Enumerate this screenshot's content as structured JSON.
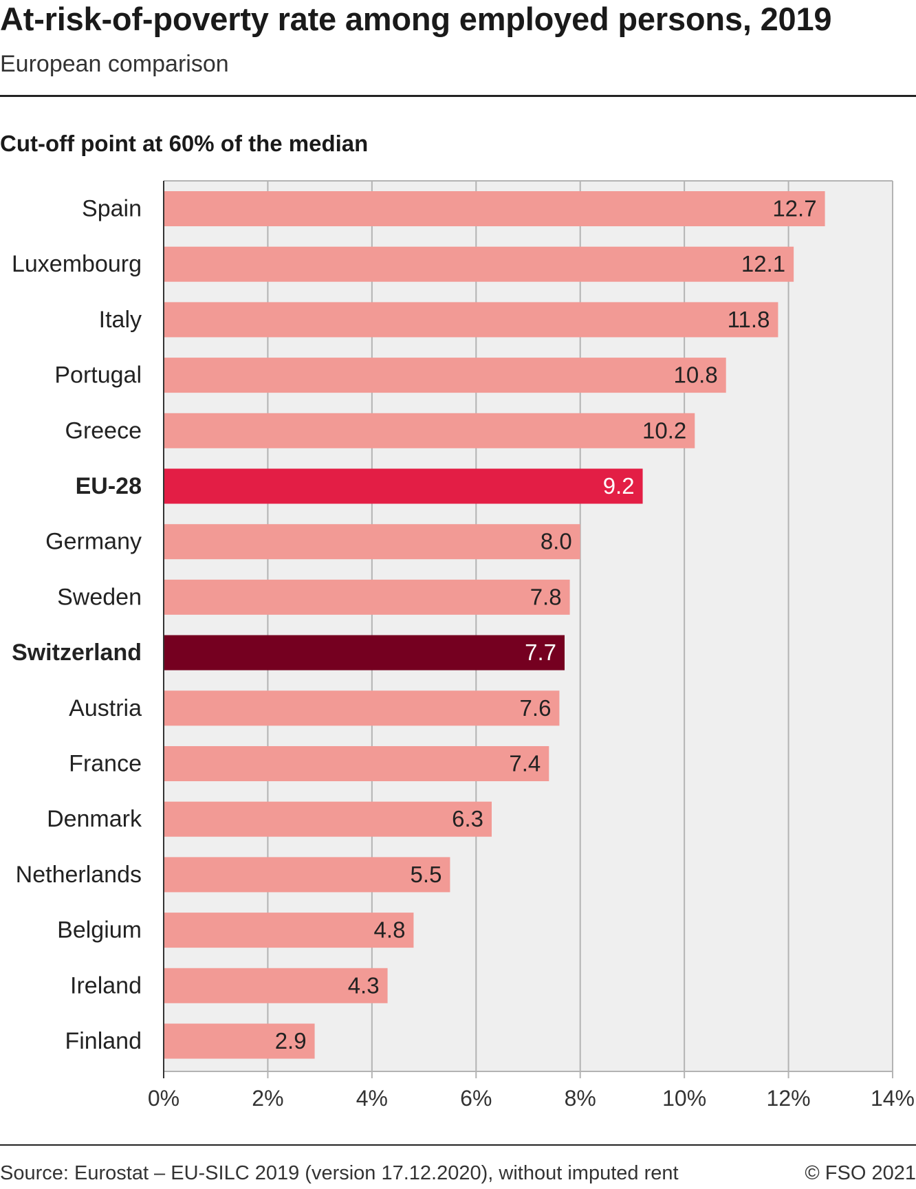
{
  "header": {
    "title": "At-risk-of-poverty rate among employed persons, 2019",
    "subtitle": "European comparison",
    "section": "Cut-off point at 60% of the median"
  },
  "footer": {
    "source": "Source: Eurostat – EU-SILC 2019 (version 17.12.2020), without imputed rent",
    "copyright": "© FSO 2021"
  },
  "colors": {
    "default_bar": "#f29a95",
    "eu_bar": "#e31e45",
    "switzerland_bar": "#750020",
    "plot_background": "#efefef",
    "grid": "#b3b3b3"
  },
  "chart_data": {
    "type": "bar",
    "orientation": "horizontal",
    "title": "At-risk-of-poverty rate among employed persons, 2019",
    "subtitle": "European comparison",
    "xlabel": "",
    "ylabel": "",
    "xlim": [
      0,
      14
    ],
    "x_ticks": [
      "0%",
      "2%",
      "4%",
      "6%",
      "8%",
      "10%",
      "12%",
      "14%"
    ],
    "grid": true,
    "categories": [
      "Spain",
      "Luxembourg",
      "Italy",
      "Portugal",
      "Greece",
      "EU-28",
      "Germany",
      "Sweden",
      "Switzerland",
      "Austria",
      "France",
      "Denmark",
      "Netherlands",
      "Belgium",
      "Ireland",
      "Finland"
    ],
    "values": [
      12.7,
      12.1,
      11.8,
      10.8,
      10.2,
      9.2,
      8.0,
      7.8,
      7.7,
      7.6,
      7.4,
      6.3,
      5.5,
      4.8,
      4.3,
      2.9
    ],
    "value_labels": [
      "12.7",
      "12.1",
      "11.8",
      "10.8",
      "10.2",
      "9.2",
      "8.0",
      "7.8",
      "7.7",
      "7.6",
      "7.4",
      "6.3",
      "5.5",
      "4.8",
      "4.3",
      "2.9"
    ],
    "highlight": {
      "EU-28": "eu",
      "Switzerland": "switzerland"
    }
  }
}
